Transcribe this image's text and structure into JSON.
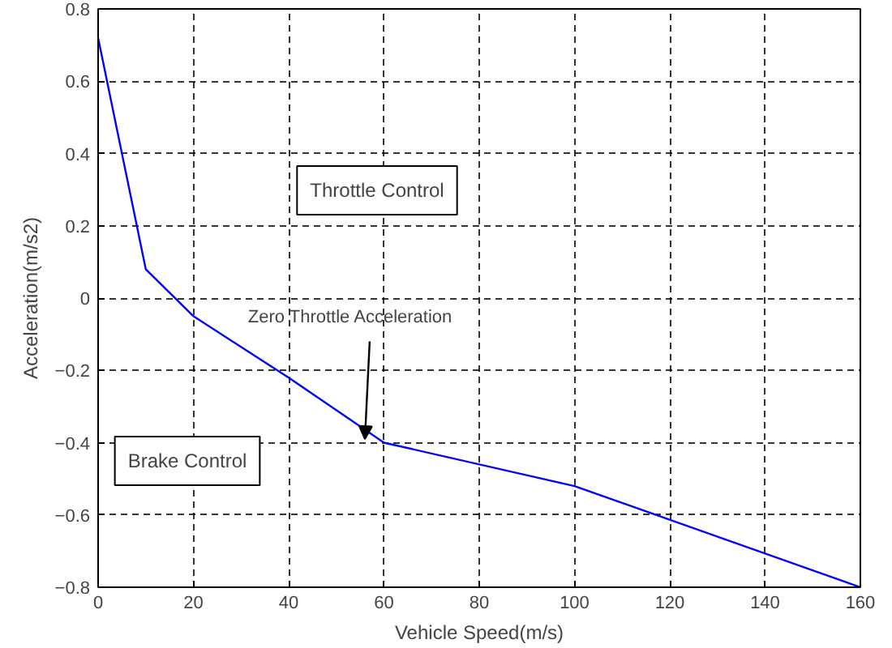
{
  "chart_data": {
    "type": "line",
    "xlabel": "Vehicle Speed(m/s)",
    "ylabel": "Acceleration(m/s2)",
    "x": [
      0,
      10,
      20,
      40,
      60,
      100,
      160
    ],
    "series": [
      {
        "color": "#0000ff",
        "values": [
          0.72,
          0.08,
          -0.05,
          -0.22,
          -0.4,
          -0.52,
          -0.8
        ]
      }
    ],
    "xlim": [
      0,
      160
    ],
    "ylim": [
      -0.8,
      0.8
    ],
    "xticks": [
      0,
      20,
      40,
      60,
      80,
      100,
      120,
      140,
      160
    ],
    "yticks": [
      -0.8,
      -0.6,
      -0.4,
      -0.2,
      0,
      0.2,
      0.4,
      0.6,
      0.8
    ],
    "grid": true,
    "line_style": "solid",
    "annotations": [
      "Throttle Control",
      "Brake Control",
      {
        "text": "Zero Throttle Acceleration",
        "x": 56,
        "y": -0.39
      }
    ]
  }
}
